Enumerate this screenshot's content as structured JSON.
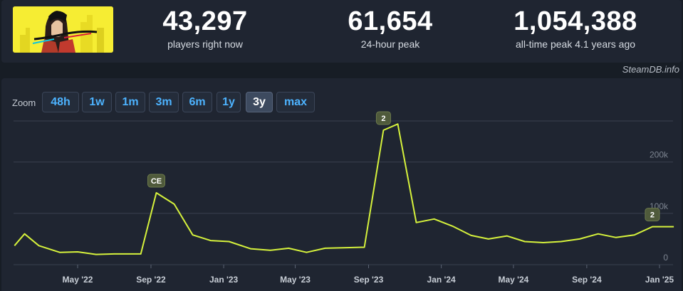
{
  "header": {
    "game_image": "cyberpunk-2077-capsule",
    "stats": [
      {
        "value": "43,297",
        "label": "players right now"
      },
      {
        "value": "61,654",
        "label": "24-hour peak"
      },
      {
        "value": "1,054,388",
        "label": "all-time peak 4.1 years ago"
      }
    ],
    "watermark": "SteamDB.info"
  },
  "zoom": {
    "label": "Zoom",
    "options": [
      "48h",
      "1w",
      "1m",
      "3m",
      "6m",
      "1y",
      "3y",
      "max"
    ],
    "active": "3y"
  },
  "colors": {
    "line": "#d6f23c",
    "accent": "#4db3ff",
    "flag_bg": "#4f5a3b"
  },
  "chart_data": {
    "type": "line",
    "ylim": [
      0,
      280000
    ],
    "yticks": [
      "0",
      "100k",
      "200k"
    ],
    "ytick_values": [
      0,
      100000,
      200000
    ],
    "grid": true,
    "xticks": [
      "May '22",
      "Sep '22",
      "Jan '23",
      "May '23",
      "Sep '23",
      "Jan '24",
      "May '24",
      "Sep '24",
      "Jan '25"
    ],
    "xtick_dates": [
      "2022-05-01",
      "2022-09-01",
      "2023-01-01",
      "2023-05-01",
      "2023-09-01",
      "2024-01-01",
      "2024-05-01",
      "2024-09-01",
      "2025-01-01"
    ],
    "series": [
      {
        "values": [
          [
            "2022-01-15",
            37000
          ],
          [
            "2022-02-01",
            60000
          ],
          [
            "2022-02-25",
            37000
          ],
          [
            "2022-04-01",
            24000
          ],
          [
            "2022-05-01",
            25000
          ],
          [
            "2022-06-01",
            20000
          ],
          [
            "2022-07-01",
            21000
          ],
          [
            "2022-08-15",
            21000
          ],
          [
            "2022-09-10",
            140000
          ],
          [
            "2022-10-10",
            118000
          ],
          [
            "2022-11-10",
            58000
          ],
          [
            "2022-12-10",
            47000
          ],
          [
            "2023-01-10",
            45000
          ],
          [
            "2023-02-15",
            31000
          ],
          [
            "2023-03-20",
            28000
          ],
          [
            "2023-04-20",
            32000
          ],
          [
            "2023-05-20",
            24000
          ],
          [
            "2023-06-20",
            32000
          ],
          [
            "2023-07-20",
            33000
          ],
          [
            "2023-08-25",
            34000
          ],
          [
            "2023-09-26",
            262000
          ],
          [
            "2023-10-20",
            274000
          ],
          [
            "2023-11-20",
            82000
          ],
          [
            "2023-12-20",
            89000
          ],
          [
            "2024-01-20",
            75000
          ],
          [
            "2024-02-20",
            57000
          ],
          [
            "2024-03-20",
            50000
          ],
          [
            "2024-04-20",
            56000
          ],
          [
            "2024-05-20",
            45000
          ],
          [
            "2024-06-20",
            43000
          ],
          [
            "2024-07-20",
            45000
          ],
          [
            "2024-08-20",
            50000
          ],
          [
            "2024-09-20",
            60000
          ],
          [
            "2024-10-20",
            53000
          ],
          [
            "2024-11-20",
            58000
          ],
          [
            "2024-12-20",
            74000
          ],
          [
            "2025-01-25",
            74000
          ]
        ]
      }
    ],
    "annotations": [
      {
        "label": "CE",
        "date": "2022-09-10",
        "value": 140000
      },
      {
        "label": "2",
        "date": "2023-09-26",
        "value": 262000
      },
      {
        "label": "2",
        "date": "2024-12-20",
        "value": 74000
      }
    ]
  }
}
